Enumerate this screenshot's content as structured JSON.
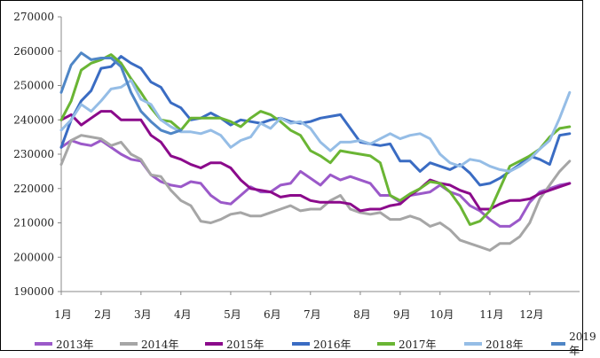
{
  "chart_data": {
    "type": "line",
    "title": "",
    "xlabel": "",
    "ylabel": "",
    "ylim": [
      190000,
      270000
    ],
    "yticks": [
      190000,
      200000,
      210000,
      220000,
      230000,
      240000,
      250000,
      260000,
      270000
    ],
    "ytick_labels": [
      "190000",
      "200000",
      "210000",
      "220000",
      "230000",
      "240000",
      "250000",
      "260000",
      "270000"
    ],
    "xlim": [
      1,
      53
    ],
    "xticks": [
      1,
      5,
      9,
      13,
      18,
      22,
      26,
      31,
      35,
      39,
      44,
      48
    ],
    "xtick_labels": [
      "1月",
      "2月",
      "3月",
      "4月",
      "5月",
      "6月",
      "7月",
      "8月",
      "9月",
      "10月",
      "11月",
      "12月"
    ],
    "grid": false,
    "legend_position": "bottom",
    "series": [
      {
        "name": "2013年",
        "color": "#9b59c9",
        "x": [
          1,
          2,
          3,
          4,
          5,
          6,
          7,
          8,
          9,
          10,
          11,
          12,
          13,
          14,
          15,
          16,
          17,
          18,
          19,
          20,
          21,
          22,
          23,
          24,
          25,
          26,
          27,
          28,
          29,
          30,
          31,
          32,
          33,
          34,
          35,
          36,
          37,
          38,
          39,
          40,
          41,
          42,
          43,
          44,
          45,
          46,
          47,
          48,
          49,
          50,
          51,
          52
        ],
        "values": [
          232000,
          234000,
          233000,
          232500,
          234000,
          232000,
          230000,
          228500,
          228000,
          224000,
          222000,
          221000,
          220500,
          222000,
          221500,
          218000,
          216000,
          215500,
          218000,
          220500,
          219000,
          219000,
          221000,
          221500,
          225000,
          223000,
          221000,
          224000,
          222500,
          223500,
          222500,
          221500,
          218000,
          218000,
          216000,
          218000,
          218500,
          219000,
          221000,
          219000,
          218000,
          215000,
          213500,
          211000,
          209000,
          209000,
          211000,
          216000,
          219000,
          220000,
          221000,
          221500
        ]
      },
      {
        "name": "2014年",
        "color": "#a6a6a6",
        "x": [
          1,
          2,
          3,
          4,
          5,
          6,
          7,
          8,
          9,
          10,
          11,
          12,
          13,
          14,
          15,
          16,
          17,
          18,
          19,
          20,
          21,
          22,
          23,
          24,
          25,
          26,
          27,
          28,
          29,
          30,
          31,
          32,
          33,
          34,
          35,
          36,
          37,
          38,
          39,
          40,
          41,
          42,
          43,
          44,
          45,
          46,
          47,
          48,
          49,
          50,
          51,
          52
        ],
        "values": [
          227000,
          234000,
          235500,
          235000,
          234500,
          232500,
          233500,
          230000,
          228500,
          224000,
          223500,
          219500,
          216500,
          215000,
          210500,
          210000,
          211000,
          212500,
          213000,
          212000,
          212000,
          213000,
          214000,
          215000,
          213500,
          214000,
          214000,
          216500,
          218000,
          214000,
          213000,
          212500,
          213000,
          211000,
          211000,
          212000,
          211000,
          209000,
          210000,
          208000,
          205000,
          204000,
          203000,
          202000,
          204000,
          204000,
          206000,
          210000,
          217000,
          221000,
          225000,
          228000
        ]
      },
      {
        "name": "2015年",
        "color": "#8b0a8b",
        "x": [
          1,
          2,
          3,
          4,
          5,
          6,
          7,
          8,
          9,
          10,
          11,
          12,
          13,
          14,
          15,
          16,
          17,
          18,
          19,
          20,
          21,
          22,
          23,
          24,
          25,
          26,
          27,
          28,
          29,
          30,
          31,
          32,
          33,
          34,
          35,
          36,
          37,
          38,
          39,
          40,
          41,
          42,
          43,
          44,
          45,
          46,
          47,
          48,
          49,
          50,
          51,
          52
        ],
        "values": [
          240000,
          241500,
          238500,
          240500,
          242500,
          242500,
          240000,
          240000,
          240000,
          235500,
          233500,
          229500,
          228500,
          227000,
          226000,
          227500,
          227500,
          226000,
          222500,
          220000,
          219500,
          219000,
          217500,
          218000,
          218000,
          216500,
          216000,
          216000,
          216000,
          215500,
          213500,
          214000,
          214000,
          215000,
          215500,
          218000,
          220000,
          222500,
          221500,
          221000,
          219500,
          218500,
          214000,
          214000,
          215500,
          216500,
          216500,
          217000,
          218500,
          219500,
          220500,
          221500
        ]
      },
      {
        "name": "2016年",
        "color": "#3a6cc3",
        "x": [
          1,
          2,
          3,
          4,
          5,
          6,
          7,
          8,
          9,
          10,
          11,
          12,
          13,
          14,
          15,
          16,
          17,
          18,
          19,
          20,
          21,
          22,
          23,
          24,
          25,
          26,
          27,
          28,
          29,
          30,
          31,
          32,
          33,
          34,
          35,
          36,
          37,
          38,
          39,
          40,
          41,
          42,
          43,
          44,
          45,
          46,
          47,
          48,
          49,
          50,
          51,
          52
        ],
        "values": [
          232000,
          240000,
          245500,
          248500,
          255000,
          255500,
          258500,
          256500,
          255000,
          251000,
          249500,
          245000,
          243500,
          240000,
          240500,
          242000,
          240500,
          238500,
          240000,
          239500,
          239000,
          240000,
          240500,
          239500,
          239000,
          239500,
          240500,
          241000,
          241500,
          237500,
          233500,
          233000,
          232500,
          233000,
          228000,
          228000,
          225000,
          227500,
          226500,
          225500,
          227000,
          224500,
          221000,
          221500,
          223000,
          225000,
          227000,
          229500,
          228500,
          227000,
          235500,
          236000
        ]
      },
      {
        "name": "2017年",
        "color": "#6ab534",
        "x": [
          1,
          2,
          3,
          4,
          5,
          6,
          7,
          8,
          9,
          10,
          11,
          12,
          13,
          14,
          15,
          16,
          17,
          18,
          19,
          20,
          21,
          22,
          23,
          24,
          25,
          26,
          27,
          28,
          29,
          30,
          31,
          32,
          33,
          34,
          35,
          36,
          37,
          38,
          39,
          40,
          41,
          42,
          43,
          44,
          45,
          46,
          47,
          48,
          49,
          50,
          51,
          52
        ],
        "values": [
          240000,
          245500,
          254500,
          256500,
          257500,
          259000,
          256500,
          252000,
          248000,
          243500,
          240000,
          239500,
          237000,
          240500,
          240500,
          240500,
          240500,
          239500,
          238000,
          240500,
          242500,
          241500,
          239500,
          237000,
          235500,
          231000,
          229500,
          227500,
          231000,
          230500,
          230000,
          229500,
          227500,
          218000,
          216500,
          218500,
          220000,
          222000,
          221500,
          219000,
          215000,
          209500,
          210500,
          213500,
          220000,
          226500,
          228000,
          229500,
          231500,
          235000,
          237500,
          238000
        ]
      },
      {
        "name": "2018年",
        "color": "#95bde6",
        "x": [
          1,
          2,
          3,
          4,
          5,
          6,
          7,
          8,
          9,
          10,
          11,
          12,
          13,
          14,
          15,
          16,
          17,
          18,
          19,
          20,
          21,
          22,
          23,
          24,
          25,
          26,
          27,
          28,
          29,
          30,
          31,
          32,
          33,
          34,
          35,
          36,
          37,
          38,
          39,
          40,
          41,
          42,
          43,
          44,
          45,
          46,
          47,
          48,
          49,
          50,
          51,
          52
        ],
        "values": [
          237000,
          240000,
          244500,
          242500,
          245500,
          249000,
          249500,
          251500,
          246000,
          244500,
          240000,
          238000,
          236500,
          236500,
          236000,
          237000,
          235500,
          232000,
          234000,
          235000,
          239000,
          237500,
          240500,
          239000,
          239500,
          237500,
          233500,
          231000,
          233500,
          233500,
          234000,
          233000,
          234500,
          236000,
          234500,
          235500,
          236000,
          234500,
          230000,
          227500,
          226500,
          228500,
          228000,
          226500,
          225500,
          225000,
          226500,
          228500,
          231500,
          234000,
          240500,
          248000
        ]
      },
      {
        "name": "2019年",
        "color": "#4f86c6",
        "x": [
          1,
          2,
          3,
          4,
          5,
          6,
          7,
          8,
          9,
          10,
          11,
          12,
          13
        ],
        "values": [
          248000,
          256000,
          259500,
          257500,
          258000,
          258000,
          255500,
          248000,
          242500,
          239500,
          237000,
          236000,
          237000
        ]
      }
    ]
  }
}
